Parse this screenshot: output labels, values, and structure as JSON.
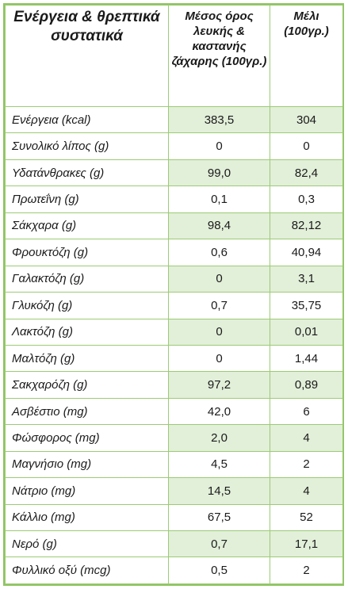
{
  "table": {
    "headers": {
      "name": "Ενέργεια & θρεπτικά συστατικά",
      "sugar": "Μέσος όρος λευκής & καστανής ζάχαρης (100γρ.)",
      "honey": "Μέλι (100γρ.)"
    },
    "rows": [
      {
        "label": "Ενέργεια (kcal)",
        "sugar": "383,5",
        "honey": "304"
      },
      {
        "label": "Συνολικό λίπος (g)",
        "sugar": "0",
        "honey": "0"
      },
      {
        "label": "Υδατάνθρακες (g)",
        "sugar": "99,0",
        "honey": "82,4"
      },
      {
        "label": "Πρωτεΐνη (g)",
        "sugar": "0,1",
        "honey": "0,3"
      },
      {
        "label": "Σάκχαρα (g)",
        "sugar": "98,4",
        "honey": "82,12"
      },
      {
        "label": "Φρουκτόζη (g)",
        "sugar": "0,6",
        "honey": "40,94"
      },
      {
        "label": "Γαλακτόζη (g)",
        "sugar": "0",
        "honey": "3,1"
      },
      {
        "label": "Γλυκόζη (g)",
        "sugar": "0,7",
        "honey": "35,75"
      },
      {
        "label": "Λακτόζη (g)",
        "sugar": "0",
        "honey": "0,01"
      },
      {
        "label": "Μαλτόζη (g)",
        "sugar": "0",
        "honey": "1,44"
      },
      {
        "label": "Σακχαρόζη (g)",
        "sugar": "97,2",
        "honey": "0,89"
      },
      {
        "label": "Ασβέστιο (mg)",
        "sugar": "42,0",
        "honey": "6"
      },
      {
        "label": "Φώσφορος (mg)",
        "sugar": "2,0",
        "honey": "4"
      },
      {
        "label": "Μαγνήσιο (mg)",
        "sugar": "4,5",
        "honey": "2"
      },
      {
        "label": "Νάτριο (mg)",
        "sugar": "14,5",
        "honey": "4"
      },
      {
        "label": "Κάλλιο (mg)",
        "sugar": "67,5",
        "honey": "52"
      },
      {
        "label": "Νερό (g)",
        "sugar": "0,7",
        "honey": "17,1"
      },
      {
        "label": "Φυλλικό οξύ (mcg)",
        "sugar": "0,5",
        "honey": "2"
      }
    ],
    "colors": {
      "border": "#8fc462",
      "row_shade": "#e2efd9"
    }
  }
}
